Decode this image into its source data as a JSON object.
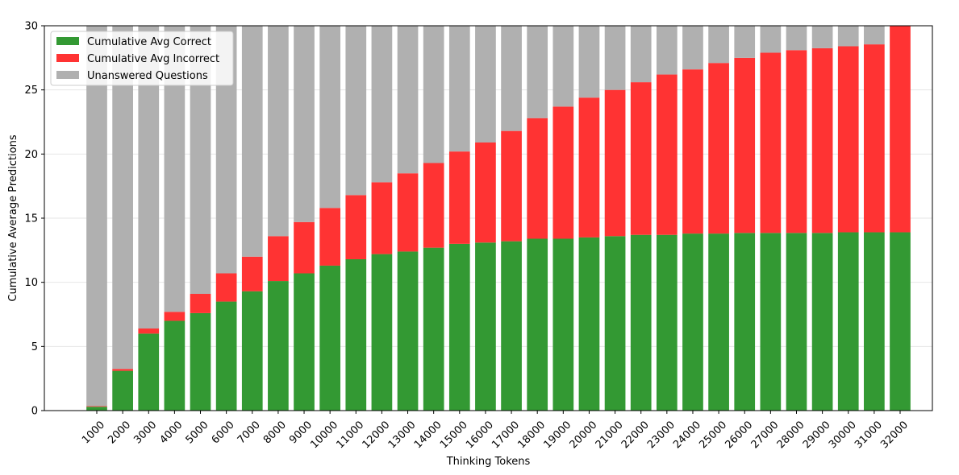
{
  "chart_data": {
    "type": "bar",
    "stacked": true,
    "title": "",
    "xlabel": "Thinking Tokens",
    "ylabel": "Cumulative Average Predictions",
    "ylim": [
      0,
      30
    ],
    "yticks": [
      0,
      5,
      10,
      15,
      20,
      25,
      30
    ],
    "grid": "horizontal",
    "legend_position": "top-left",
    "categories": [
      "1000",
      "2000",
      "3000",
      "4000",
      "5000",
      "6000",
      "7000",
      "8000",
      "9000",
      "10000",
      "11000",
      "12000",
      "13000",
      "14000",
      "15000",
      "16000",
      "17000",
      "18000",
      "19000",
      "20000",
      "21000",
      "22000",
      "23000",
      "24000",
      "25000",
      "26000",
      "27000",
      "28000",
      "29000",
      "30000",
      "31000",
      "32000"
    ],
    "series": [
      {
        "name": "Cumulative Avg Correct",
        "color": "#339933",
        "values": [
          0.3,
          3.1,
          6.0,
          7.0,
          7.6,
          8.5,
          9.3,
          10.1,
          10.7,
          11.3,
          11.8,
          12.2,
          12.4,
          12.7,
          13.0,
          13.1,
          13.2,
          13.4,
          13.4,
          13.5,
          13.6,
          13.7,
          13.7,
          13.8,
          13.8,
          13.85,
          13.85,
          13.85,
          13.85,
          13.9,
          13.9,
          13.9
        ]
      },
      {
        "name": "Cumulative Avg Incorrect",
        "color": "#ff3333",
        "values": [
          0.05,
          0.15,
          0.4,
          0.7,
          1.5,
          2.2,
          2.7,
          3.5,
          4.0,
          4.5,
          5.0,
          5.6,
          6.1,
          6.6,
          7.2,
          7.8,
          8.6,
          9.4,
          10.3,
          10.9,
          11.4,
          11.9,
          12.5,
          12.8,
          13.3,
          13.65,
          14.05,
          14.25,
          14.4,
          14.5,
          14.65,
          16.1
        ]
      },
      {
        "name": "Unanswered Questions",
        "color": "#b0b0b0",
        "values": [
          29.65,
          26.75,
          23.6,
          22.3,
          20.9,
          19.3,
          18.0,
          16.4,
          15.3,
          14.2,
          13.2,
          12.2,
          11.5,
          10.7,
          9.8,
          9.1,
          8.2,
          7.2,
          6.3,
          5.6,
          5.0,
          4.4,
          3.8,
          3.4,
          2.9,
          2.5,
          2.1,
          1.9,
          1.75,
          1.6,
          1.45,
          0.0
        ]
      }
    ]
  }
}
